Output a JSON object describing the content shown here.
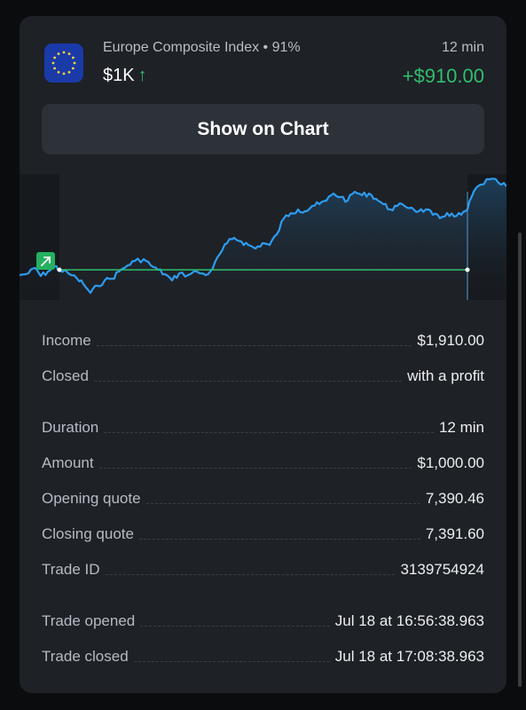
{
  "trade": {
    "asset_name": "Europe Composite Index • 91%",
    "duration_short": "12 min",
    "amount_short": "$1K",
    "direction_icon": "arrow-up-icon",
    "profit": "+$910.00"
  },
  "show_chart_label": "Show on Chart",
  "details": [
    {
      "label": "Income",
      "value": "$1,910.00"
    },
    {
      "label": "Closed",
      "value": "with a profit"
    },
    {
      "label": "Duration",
      "value": "12 min"
    },
    {
      "label": "Amount",
      "value": "$1,000.00"
    },
    {
      "label": "Opening quote",
      "value": "7,390.46"
    },
    {
      "label": "Closing quote",
      "value": "7,391.60"
    },
    {
      "label": "Trade ID",
      "value": "3139754924"
    },
    {
      "label": "Trade opened",
      "value": "Jul 18 at 16:56:38.963"
    },
    {
      "label": "Trade closed",
      "value": "Jul 18 at 17:08:38.963"
    }
  ],
  "colors": {
    "profit_green": "#2fbf6e",
    "price_line_blue": "#2d9cf0",
    "card_bg": "#1e2126",
    "button_bg": "#2d3138"
  }
}
